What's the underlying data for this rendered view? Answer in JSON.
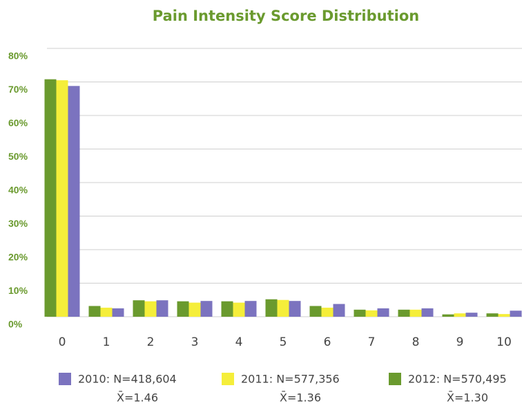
{
  "chart_data": {
    "type": "bar",
    "title": "Pain Intensity Score Distribution",
    "categories": [
      "0",
      "1",
      "2",
      "3",
      "4",
      "5",
      "6",
      "7",
      "8",
      "9",
      "10"
    ],
    "series": [
      {
        "name": "2010: N=418,604",
        "mean": "X̄=1.46",
        "color": "#7b73bf",
        "values": [
          68.8,
          2.5,
          4.9,
          4.7,
          4.7,
          4.7,
          3.8,
          2.5,
          2.5,
          1.2,
          1.8
        ]
      },
      {
        "name": "2011: N=577,356",
        "mean": "X̄=1.36",
        "color": "#f5ee3a",
        "values": [
          70.5,
          2.7,
          4.6,
          4.2,
          4.2,
          5.0,
          2.7,
          1.9,
          2.1,
          1.0,
          0.8
        ]
      },
      {
        "name": "2012: N=570,495",
        "mean": "X̄=1.30",
        "color": "#6a9a2e",
        "values": [
          70.8,
          3.2,
          4.9,
          4.6,
          4.6,
          5.2,
          3.2,
          2.1,
          2.1,
          0.7,
          1.0
        ]
      }
    ],
    "ylim": [
      0,
      80
    ],
    "yticks": [
      {
        "value": 0,
        "label": "0%"
      },
      {
        "value": 10,
        "label": "10%"
      },
      {
        "value": 20,
        "label": "20%"
      },
      {
        "value": 30,
        "label": "30%"
      },
      {
        "value": 40,
        "label": "40%"
      },
      {
        "value": 50,
        "label": "50%"
      },
      {
        "value": 60,
        "label": "60%"
      },
      {
        "value": 70,
        "label": "70%"
      },
      {
        "value": 80,
        "label": "80%"
      }
    ],
    "grid": true
  }
}
